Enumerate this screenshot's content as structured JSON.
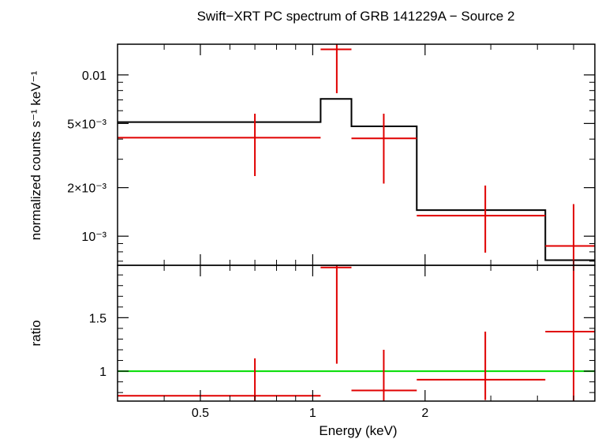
{
  "chart_data": {
    "type": "scatter",
    "title": "Swift−XRT PC spectrum of GRB 141229A − Source 2",
    "xlabel": "Energy (keV)",
    "xscale": "log",
    "xlim": [
      0.3,
      5.7
    ],
    "x_ticks": [
      {
        "value": 0.5,
        "label": "0.5"
      },
      {
        "value": 1,
        "label": "1"
      },
      {
        "value": 2,
        "label": "2"
      }
    ],
    "colors": {
      "data": "#e00000",
      "model": "#000000",
      "unity": "#00dd00",
      "frame": "#000000"
    },
    "panels": [
      {
        "name": "spectrum",
        "ylabel": "normalized counts s⁻¹ keV⁻¹",
        "yscale": "log",
        "ylim": [
          0.00066,
          0.0155
        ],
        "y_ticks": [
          {
            "value": 0.01,
            "label": "0.01"
          },
          {
            "value": 0.005,
            "label": "5×10⁻³"
          },
          {
            "value": 0.002,
            "label": "2×10⁻³"
          },
          {
            "value": 0.001,
            "label": "10⁻³"
          }
        ],
        "data_points": [
          {
            "x": 0.7,
            "xlo": 0.3,
            "xhi": 1.05,
            "y": 0.00408,
            "ylo": 0.00236,
            "yhi": 0.00575
          },
          {
            "x": 1.16,
            "xlo": 1.05,
            "xhi": 1.27,
            "y": 0.0144,
            "ylo": 0.0077,
            "yhi": 0.0155
          },
          {
            "x": 1.55,
            "xlo": 1.27,
            "xhi": 1.9,
            "y": 0.00404,
            "ylo": 0.00212,
            "yhi": 0.00575
          },
          {
            "x": 2.9,
            "xlo": 1.9,
            "xhi": 4.2,
            "y": 0.00134,
            "ylo": 0.00079,
            "yhi": 0.00206
          },
          {
            "x": 5.0,
            "xlo": 4.2,
            "xhi": 5.7,
            "y": 0.00087,
            "ylo": 0.00066,
            "yhi": 0.00158
          }
        ],
        "model_steps": [
          {
            "xlo": 0.3,
            "xhi": 1.05,
            "y": 0.0051
          },
          {
            "xlo": 1.05,
            "xhi": 1.27,
            "y": 0.0071
          },
          {
            "xlo": 1.27,
            "xhi": 1.9,
            "y": 0.0048
          },
          {
            "xlo": 1.9,
            "xhi": 4.2,
            "y": 0.00145
          },
          {
            "xlo": 4.2,
            "xhi": 5.7,
            "y": 0.00071
          }
        ]
      },
      {
        "name": "ratio",
        "ylabel": "ratio",
        "yscale": "linear",
        "ylim": [
          0.72,
          1.99
        ],
        "y_ticks": [
          {
            "value": 1.5,
            "label": "1.5"
          },
          {
            "value": 1,
            "label": "1"
          }
        ],
        "reference_line": 1,
        "data_points": [
          {
            "x": 0.7,
            "xlo": 0.3,
            "xhi": 1.05,
            "y": 0.77,
            "ylo": 0.72,
            "yhi": 1.12
          },
          {
            "x": 1.16,
            "xlo": 1.05,
            "xhi": 1.27,
            "y": 1.97,
            "ylo": 1.07,
            "yhi": 1.99
          },
          {
            "x": 1.55,
            "xlo": 1.27,
            "xhi": 1.9,
            "y": 0.82,
            "ylo": 0.72,
            "yhi": 1.2
          },
          {
            "x": 2.9,
            "xlo": 1.9,
            "xhi": 4.2,
            "y": 0.92,
            "ylo": 0.73,
            "yhi": 1.37
          },
          {
            "x": 5.0,
            "xlo": 4.2,
            "xhi": 5.7,
            "y": 1.37,
            "ylo": 0.72,
            "yhi": 1.99
          }
        ]
      }
    ]
  }
}
